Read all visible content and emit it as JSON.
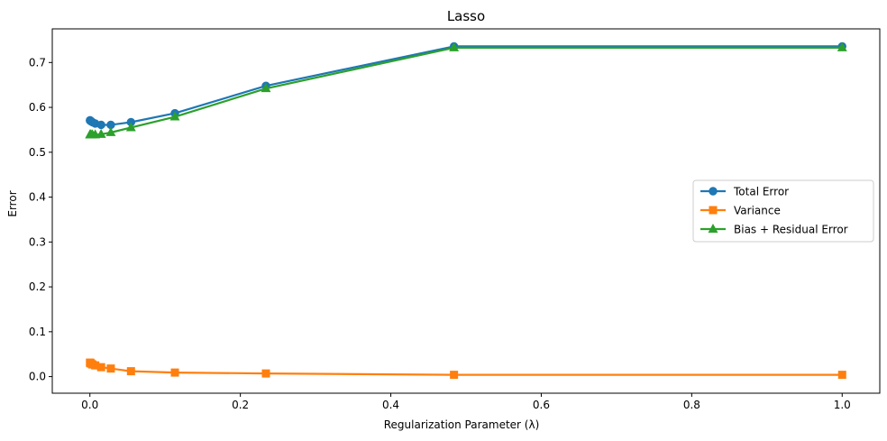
{
  "chart_data": {
    "type": "line",
    "title": "Lasso",
    "xlabel": "Regularization Parameter (λ)",
    "ylabel": "Error",
    "xlim": [
      -0.05,
      1.05
    ],
    "ylim": [
      -0.037,
      0.775
    ],
    "xticks": [
      0.0,
      0.2,
      0.4,
      0.6,
      0.8,
      1.0
    ],
    "xtick_labels": [
      "0.0",
      "0.2",
      "0.4",
      "0.6",
      "0.8",
      "1.0"
    ],
    "yticks": [
      0.0,
      0.1,
      0.2,
      0.3,
      0.4,
      0.5,
      0.6,
      0.7
    ],
    "ytick_labels": [
      "0.0",
      "0.1",
      "0.2",
      "0.3",
      "0.4",
      "0.5",
      "0.6",
      "0.7"
    ],
    "grid": false,
    "legend_position": "center-right",
    "x": [
      0.0001,
      0.0003,
      0.0007,
      0.0016,
      0.0034,
      0.0071,
      0.0149,
      0.0278,
      0.0546,
      0.113,
      0.234,
      0.484,
      1.0
    ],
    "series": [
      {
        "name": "Total Error",
        "color": "#1f77b4",
        "marker": "circle",
        "values": [
          0.571,
          0.571,
          0.57,
          0.569,
          0.567,
          0.564,
          0.561,
          0.561,
          0.567,
          0.587,
          0.648,
          0.736,
          0.736
        ]
      },
      {
        "name": "Variance",
        "color": "#ff7f0e",
        "marker": "square",
        "values": [
          0.031,
          0.031,
          0.03,
          0.029,
          0.027,
          0.025,
          0.021,
          0.018,
          0.012,
          0.009,
          0.007,
          0.004,
          0.004
        ]
      },
      {
        "name": "Bias + Residual Error",
        "color": "#2ca02c",
        "marker": "triangle",
        "values": [
          0.539,
          0.539,
          0.539,
          0.539,
          0.539,
          0.539,
          0.54,
          0.544,
          0.555,
          0.579,
          0.642,
          0.733,
          0.733
        ]
      }
    ]
  }
}
